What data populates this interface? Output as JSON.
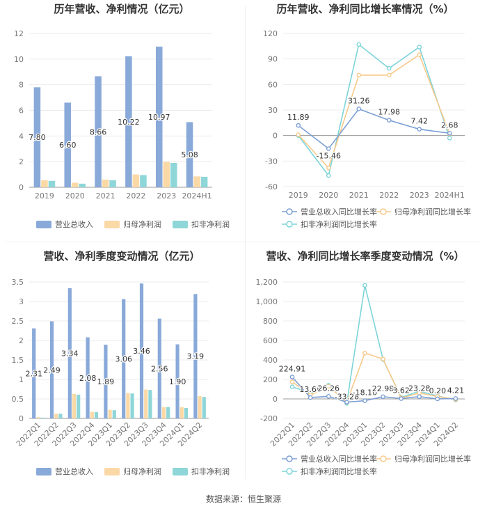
{
  "source": "数据来源：恒生聚源",
  "colors": {
    "revenue": "#89a9d9",
    "net_profit": "#fbd9a6",
    "deducted_profit": "#8ed6d8",
    "revenue_line": "#7c9fd4",
    "net_profit_line": "#f7c98a",
    "deducted_line": "#7dd4d9"
  },
  "chart_data": [
    {
      "type": "bar",
      "title": "历年营收、净利情况（亿元）",
      "categories": [
        "2019",
        "2020",
        "2021",
        "2022",
        "2023",
        "2024H1"
      ],
      "ylim": [
        0,
        12
      ],
      "yticks": [
        "0",
        "2",
        "4",
        "6",
        "8",
        "10",
        "12"
      ],
      "yticks_values": [
        0,
        2,
        4,
        6,
        8,
        10,
        12
      ],
      "series": [
        {
          "name": "营业总收入",
          "values": [
            7.8,
            6.6,
            8.66,
            10.22,
            10.97,
            5.08
          ],
          "labels": [
            "7.80",
            "6.60",
            "8.66",
            "10.22",
            "10.97",
            "5.08"
          ]
        },
        {
          "name": "归母净利润",
          "values": [
            0.55,
            0.35,
            0.6,
            1.0,
            1.98,
            0.85
          ]
        },
        {
          "name": "扣非净利润",
          "values": [
            0.5,
            0.28,
            0.55,
            0.95,
            1.9,
            0.82
          ]
        }
      ],
      "legend": "bottom"
    },
    {
      "type": "line",
      "title": "历年营收、净利同比增长率情况（%）",
      "categories": [
        "2019",
        "2020",
        "2021",
        "2022",
        "2023",
        "2024H1"
      ],
      "ylim": [
        -60,
        120
      ],
      "yticks": [
        "-60",
        "-30",
        "0",
        "30",
        "60",
        "90",
        "120"
      ],
      "yticks_values": [
        -60,
        -30,
        0,
        30,
        60,
        90,
        120
      ],
      "series": [
        {
          "name": "营业总收入同比增长率",
          "values": [
            11.89,
            -15.46,
            31.26,
            17.98,
            7.42,
            2.68
          ],
          "labels": [
            "11.89",
            "-15.46",
            "31.26",
            "17.98",
            "7.42",
            "2.68"
          ]
        },
        {
          "name": "归母净利润同比增长率",
          "values": [
            1,
            -38,
            71,
            71,
            95,
            2
          ]
        },
        {
          "name": "扣非净利润同比增长率",
          "values": [
            0,
            -47,
            107,
            79,
            104,
            -3
          ]
        }
      ],
      "legend": "bottom"
    },
    {
      "type": "bar",
      "title": "营收、净利季度变动情况（亿元）",
      "categories": [
        "2022Q1",
        "2022Q2",
        "2022Q3",
        "2022Q4",
        "2023Q1",
        "2023Q2",
        "2023Q3",
        "2023Q4",
        "2024Q1",
        "2024Q2"
      ],
      "ylim": [
        0,
        3.5
      ],
      "yticks": [
        "0",
        "0.5",
        "1",
        "1.5",
        "2",
        "2.5",
        "3",
        "3.5"
      ],
      "yticks_values": [
        0,
        0.5,
        1,
        1.5,
        2,
        2.5,
        3,
        3.5
      ],
      "series": [
        {
          "name": "营业总收入",
          "values": [
            2.31,
            2.49,
            3.34,
            2.08,
            1.89,
            3.06,
            3.46,
            2.56,
            1.9,
            3.19
          ],
          "labels": [
            "2.31",
            "2.49",
            "3.34",
            "2.08",
            "1.89",
            "3.06",
            "3.46",
            "2.56",
            "1.90",
            "3.19"
          ]
        },
        {
          "name": "归母净利润",
          "values": [
            0.03,
            0.12,
            0.63,
            0.17,
            0.22,
            0.65,
            0.74,
            0.29,
            0.29,
            0.57
          ]
        },
        {
          "name": "扣非净利润",
          "values": [
            0.02,
            0.12,
            0.61,
            0.16,
            0.21,
            0.64,
            0.73,
            0.29,
            0.27,
            0.55
          ]
        }
      ],
      "legend": "bottom"
    },
    {
      "type": "line",
      "title": "营收、净利同比增长率季度变动情况（%）",
      "categories": [
        "2022Q1",
        "2022Q2",
        "2022Q3",
        "2022Q4",
        "2023Q1",
        "2023Q2",
        "2023Q3",
        "2023Q4",
        "2024Q1",
        "2024Q2"
      ],
      "ylim": [
        -200,
        1200
      ],
      "yticks": [
        "-200",
        "0",
        "200",
        "400",
        "600",
        "800",
        "1,000",
        "1,200"
      ],
      "yticks_values": [
        -200,
        0,
        200,
        400,
        600,
        800,
        1000,
        1200
      ],
      "series": [
        {
          "name": "营业总收入同比增长率",
          "values": [
            224.91,
            13.68,
            26.26,
            -33.28,
            -18.1,
            22.98,
            3.62,
            23.28,
            0.2,
            4.21
          ],
          "labels": [
            "224.91",
            "13.68",
            "26.26",
            "-33.28",
            "-18.10",
            "22.98",
            "3.62",
            "23.28",
            "0.20",
            "4.21"
          ]
        },
        {
          "name": "归母净利润同比增长率",
          "values": [
            175,
            40,
            130,
            -35,
            470,
            410,
            10,
            60,
            25,
            -5
          ]
        },
        {
          "name": "扣非净利润同比增长率",
          "values": [
            125,
            60,
            140,
            -45,
            1165,
            405,
            15,
            80,
            30,
            -10
          ]
        }
      ],
      "legend": "bottom"
    }
  ]
}
